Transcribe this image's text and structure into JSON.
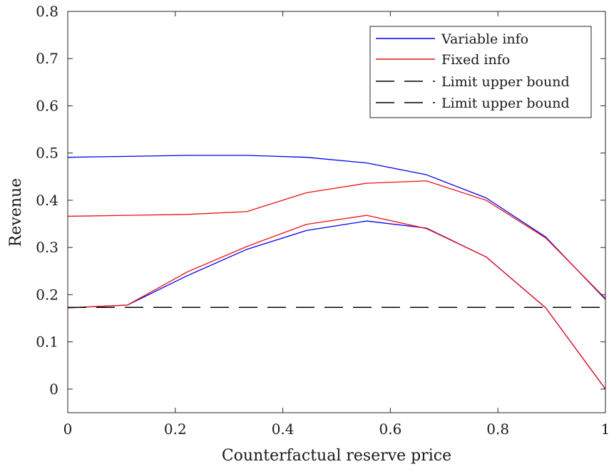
{
  "chart_data": {
    "type": "line",
    "title": "",
    "xlabel": "Counterfactual reserve price",
    "ylabel": "Revenue",
    "xlim": [
      0,
      1
    ],
    "ylim": [
      -0.05,
      0.8
    ],
    "xticks": [
      0,
      0.2,
      0.4,
      0.6,
      0.8,
      1
    ],
    "xtick_labels": [
      "0",
      "0.2",
      "0.4",
      "0.6",
      "0.8",
      "1"
    ],
    "yticks": [
      0,
      0.1,
      0.2,
      0.3,
      0.4,
      0.5,
      0.6,
      0.7,
      0.8
    ],
    "ytick_labels": [
      "0",
      "0.1",
      "0.2",
      "0.3",
      "0.4",
      "0.5",
      "0.6",
      "0.7",
      "0.8"
    ],
    "grid": false,
    "legend_position": "top-right",
    "legend": [
      {
        "label": "Variable info",
        "color": "#0000ee",
        "dash": "solid"
      },
      {
        "label": "Fixed info",
        "color": "#ee1111",
        "dash": "solid"
      },
      {
        "label": "Limit upper bound",
        "color": "#000000",
        "dash": "dashed"
      },
      {
        "label": "Limit upper bound",
        "color": "#000000",
        "dash": "dashed"
      }
    ],
    "series": [
      {
        "color": "#0000ee",
        "dash": "solid",
        "x": [
          0,
          0.111,
          0.222,
          0.333,
          0.444,
          0.556,
          0.667,
          0.778,
          0.889,
          1
        ],
        "y": [
          0.491,
          0.493,
          0.495,
          0.495,
          0.491,
          0.479,
          0.454,
          0.405,
          0.322,
          0.19
        ]
      },
      {
        "color": "#ee1111",
        "dash": "solid",
        "x": [
          0,
          0.111,
          0.222,
          0.333,
          0.444,
          0.556,
          0.667,
          0.778,
          0.889,
          1
        ],
        "y": [
          0.366,
          0.368,
          0.37,
          0.376,
          0.416,
          0.436,
          0.441,
          0.4,
          0.32,
          0.192
        ]
      },
      {
        "color": "#0000ee",
        "dash": "solid",
        "x": [
          0,
          0.111,
          0.222,
          0.333,
          0.444,
          0.556,
          0.667,
          0.778,
          0.889,
          1
        ],
        "y": [
          0.172,
          0.178,
          0.24,
          0.296,
          0.336,
          0.356,
          0.341,
          0.28,
          0.172,
          0.0
        ]
      },
      {
        "color": "#ee1111",
        "dash": "solid",
        "x": [
          0,
          0.111,
          0.222,
          0.333,
          0.444,
          0.556,
          0.667,
          0.778,
          0.889,
          1
        ],
        "y": [
          0.172,
          0.178,
          0.248,
          0.302,
          0.349,
          0.368,
          0.34,
          0.28,
          0.172,
          0.0
        ]
      },
      {
        "color": "#000000",
        "dash": "dashed",
        "x": [
          0,
          1
        ],
        "y": [
          0.173,
          0.173
        ]
      },
      {
        "color": "#000000",
        "dash": "dashed",
        "x": [
          0,
          1
        ],
        "y": [
          0.173,
          0.173
        ]
      }
    ]
  }
}
